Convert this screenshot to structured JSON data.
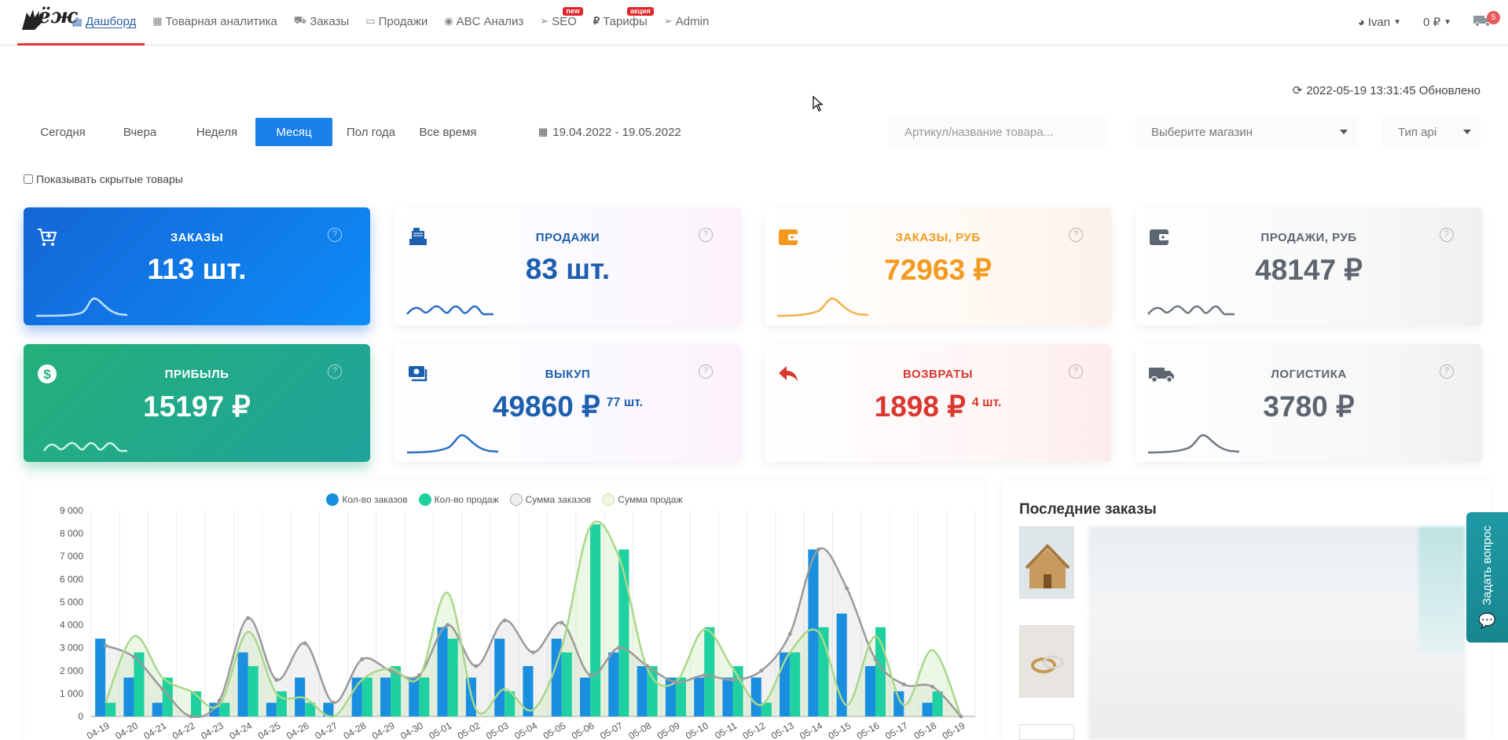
{
  "nav": {
    "logo_text": "ёж",
    "items": [
      {
        "label": "Дашборд",
        "icon": "bar-chart-icon",
        "active": true,
        "badge": ""
      },
      {
        "label": "Товарная аналитика",
        "icon": "gift-icon",
        "badge": ""
      },
      {
        "label": "Заказы",
        "icon": "cart-icon",
        "badge": ""
      },
      {
        "label": "Продажи",
        "icon": "card-icon",
        "badge": ""
      },
      {
        "label": "ABC Анализ",
        "icon": "eye-icon",
        "badge": ""
      },
      {
        "label": "SEO",
        "icon": "send-icon",
        "badge": "new"
      },
      {
        "label": "Тарифы",
        "icon": "ruble-icon",
        "badge": "акция"
      },
      {
        "label": "Admin",
        "icon": "send-icon",
        "badge": ""
      }
    ],
    "user": "Ivan",
    "balance": "0 ₽",
    "truck_count": "5"
  },
  "updated": "2022-05-19 13:31:45 Обновлено",
  "periods": [
    "Сегодня",
    "Вчера",
    "Неделя",
    "Месяц",
    "Пол года",
    "Все время"
  ],
  "active_period": "Месяц",
  "date_range": "19.04.2022 - 19.05.2022",
  "search_placeholder": "Артикул/название товара...",
  "store_select": "Выберите магазин",
  "api_select": "Тип api",
  "show_hidden_label": "Показывать скрытые товары",
  "cards": [
    {
      "title": "ЗАКАЗЫ",
      "value": "113 шт.",
      "extra": "",
      "icon": "cart-plus-icon"
    },
    {
      "title": "ПРОДАЖИ",
      "value": "83 шт.",
      "extra": "",
      "icon": "cash-register-icon"
    },
    {
      "title": "ЗАКАЗЫ, РУБ",
      "value": "72963 ₽",
      "extra": "",
      "icon": "wallet-icon"
    },
    {
      "title": "ПРОДАЖИ, РУБ",
      "value": "48147 ₽",
      "extra": "",
      "icon": "wallet-icon"
    },
    {
      "title": "ПРИБЫЛЬ",
      "value": "15197 ₽",
      "extra": "",
      "icon": "dollar-icon"
    },
    {
      "title": "ВЫКУП",
      "value": "49860 ₽",
      "extra": "77 шт.",
      "icon": "money-icon"
    },
    {
      "title": "ВОЗВРАТЫ",
      "value": "1898 ₽",
      "extra": "4 шт.",
      "icon": "reply-icon"
    },
    {
      "title": "ЛОГИСТИКА",
      "value": "3780 ₽",
      "extra": "",
      "icon": "truck-icon"
    }
  ],
  "colors": {
    "blue": "#1a7fe8",
    "green": "#23b07a",
    "orange": "#f39a1e",
    "red": "#d9372f",
    "grey": "#5d6670",
    "dark_blue": "#1b5fae"
  },
  "chart_data": {
    "type": "bar",
    "legend": [
      "Кол-во заказов",
      "Кол-во продаж",
      "Сумма заказов",
      "Сумма продаж"
    ],
    "categories": [
      "04-19",
      "04-20",
      "04-21",
      "04-22",
      "04-23",
      "04-24",
      "04-25",
      "04-26",
      "04-27",
      "04-28",
      "04-29",
      "04-30",
      "05-01",
      "05-02",
      "05-03",
      "05-04",
      "05-05",
      "05-06",
      "05-07",
      "05-08",
      "05-09",
      "05-10",
      "05-11",
      "05-12",
      "05-13",
      "05-14",
      "05-15",
      "05-16",
      "05-17",
      "05-18",
      "05-19"
    ],
    "yticks": [
      "0",
      "1 000",
      "2 000",
      "3 000",
      "4 000",
      "5 000",
      "6 000",
      "7 000",
      "8 000",
      "9 000"
    ],
    "ylim": [
      0,
      9000
    ],
    "series": [
      {
        "name": "Кол-во заказов",
        "color": "#1a8fe0",
        "values": [
          3400,
          1700,
          600,
          0,
          600,
          2800,
          600,
          1700,
          600,
          1700,
          1700,
          1700,
          3900,
          1700,
          3400,
          2200,
          3400,
          1700,
          2800,
          2200,
          1700,
          1700,
          1700,
          1700,
          2800,
          7300,
          4500,
          2200,
          1100,
          600,
          0
        ]
      },
      {
        "name": "Кол-во продаж",
        "color": "#1fd1a0",
        "values": [
          600,
          2800,
          1700,
          1100,
          600,
          2200,
          1100,
          600,
          0,
          1700,
          2200,
          1700,
          3400,
          0,
          1100,
          0,
          2800,
          8400,
          7300,
          2200,
          1700,
          3900,
          2200,
          600,
          2800,
          3900,
          0,
          3900,
          0,
          1100,
          0
        ]
      },
      {
        "name": "Сумма заказов",
        "color": "#9a9a9a",
        "values": [
          3100,
          2600,
          1200,
          0,
          700,
          4300,
          1600,
          3200,
          600,
          2500,
          2000,
          1800,
          4000,
          2200,
          4200,
          2800,
          4100,
          1800,
          3000,
          2200,
          1500,
          1800,
          1600,
          2000,
          3600,
          7300,
          5600,
          2500,
          1400,
          1300,
          0
        ]
      },
      {
        "name": "Сумма продаж",
        "color": "#a8d88a",
        "values": [
          600,
          3500,
          1700,
          1100,
          500,
          3700,
          1000,
          800,
          0,
          1600,
          2100,
          1700,
          5400,
          300,
          1200,
          300,
          3000,
          8300,
          7000,
          2100,
          1500,
          3800,
          2100,
          500,
          2800,
          3700,
          500,
          3500,
          500,
          2900,
          0
        ]
      }
    ]
  },
  "recent_orders_title": "Последние заказы",
  "ask_question": "Задать вопрос"
}
